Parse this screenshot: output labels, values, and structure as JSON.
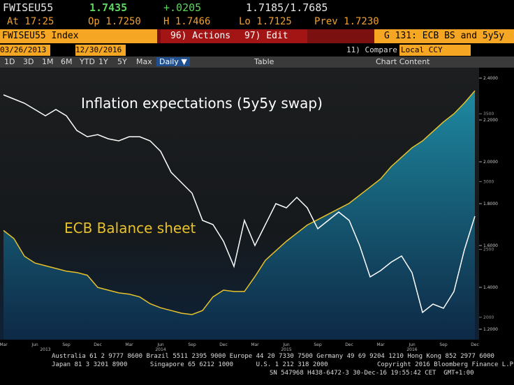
{
  "terminal": {
    "ticker": "FWISEU55",
    "last": "1.7435",
    "change": "+.0205",
    "bid_ask": "1.7185/1.7685",
    "at": "At 17:25",
    "open": "Op 1.7250",
    "high": "H 1.7466",
    "low": "Lo 1.7125",
    "prev": "Prev 1.7230",
    "security": "FWISEU55 Index",
    "actions": "96) Actions",
    "edit": "97) Edit",
    "page_title": "G 131: ECB BS and 5y5y",
    "start_date": "03/26/2013",
    "end_date": "12/30/2016",
    "compare": "11) Compare",
    "currency": "Local CCY",
    "periods": [
      "1D",
      "3D",
      "1M",
      "6M",
      "YTD",
      "1Y",
      "5Y",
      "Max"
    ],
    "frequency": "Daily ▼",
    "table": "Table",
    "chart_content": "Chart Content",
    "footer": [
      "Australia 61 2 9777 8600 Brazil 5511 2395 9000 Europe 44 20 7330 7500 Germany 49 69 9204 1210 Hong Kong 852 2977 6000",
      "Japan 81 3 3201 8900      Singapore 65 6212 1000      U.S. 1 212 318 2000             Copyright 2016 Bloomberg Finance L.P.",
      "SN 547968 H438-6472-3 30-Dec-16 19:55:42 CET  GMT+1:00"
    ]
  },
  "chart_data": {
    "type": "line",
    "annotations": [
      "Inflation expectations (5y5y swap)",
      "ECB Balance sheet"
    ],
    "categories": [
      "Mar",
      null,
      null,
      "Jun",
      null,
      null,
      "Sep",
      null,
      null,
      "Dec",
      null,
      null,
      "Mar",
      null,
      null,
      "Jun",
      null,
      null,
      "Sep",
      null,
      null,
      "Dec",
      null,
      null,
      "Mar",
      null,
      null,
      "Jun",
      null,
      null,
      "Sep",
      null,
      null,
      "Dec",
      null,
      null,
      "Mar",
      null,
      null,
      "Jun",
      null,
      null,
      "Sep",
      null,
      null,
      "Dec"
    ],
    "year_labels": [
      null,
      null,
      null,
      null,
      "2013",
      null,
      null,
      null,
      null,
      null,
      null,
      null,
      null,
      null,
      null,
      "2014",
      null,
      null,
      null,
      null,
      null,
      null,
      null,
      null,
      null,
      null,
      null,
      "2015",
      null,
      null,
      null,
      null,
      null,
      null,
      null,
      null,
      null,
      null,
      null,
      "2016",
      null,
      null,
      null,
      null,
      null,
      null
    ],
    "series": [
      {
        "color": "#ffffff",
        "values": [
          2.32,
          2.3,
          2.28,
          2.25,
          2.22,
          2.25,
          2.22,
          2.15,
          2.12,
          2.13,
          2.11,
          2.1,
          2.12,
          2.12,
          2.1,
          2.05,
          1.95,
          1.9,
          1.85,
          1.72,
          1.7,
          1.62,
          1.5,
          1.72,
          1.6,
          1.7,
          1.8,
          1.78,
          1.83,
          1.78,
          1.68,
          1.72,
          1.76,
          1.72,
          1.6,
          1.45,
          1.48,
          1.52,
          1.55,
          1.47,
          1.28,
          1.32,
          1.3,
          1.38,
          1.58,
          1.74
        ]
      },
      {
        "color": "#e8c22a",
        "fill": "#1e8fa8",
        "axis": "y2",
        "values": [
          2640,
          2580,
          2450,
          2400,
          2380,
          2360,
          2340,
          2330,
          2310,
          2220,
          2200,
          2180,
          2170,
          2150,
          2100,
          2070,
          2050,
          2030,
          2020,
          2050,
          2150,
          2200,
          2190,
          2190,
          2300,
          2420,
          2490,
          2560,
          2620,
          2680,
          2720,
          2760,
          2800,
          2840,
          2900,
          2960,
          3020,
          3110,
          3180,
          3250,
          3300,
          3370,
          3440,
          3500,
          3580,
          3670
        ]
      }
    ],
    "ylim": [
      1.15,
      2.45
    ],
    "yticks": [
      {
        "value": 1.2,
        "label": "1.2000"
      },
      {
        "value": 1.4,
        "label": "1.4000"
      },
      {
        "value": 1.6,
        "label": "1.6000"
      },
      {
        "value": 1.8,
        "label": "1.8000"
      },
      {
        "value": 2.0,
        "label": "2.0000"
      },
      {
        "value": 2.2,
        "label": "2.2000"
      },
      {
        "value": 2.4,
        "label": "2.4000"
      }
    ],
    "y2lim": [
      1835,
      3840
    ],
    "y2ticks": [
      2000,
      2500,
      3000,
      3500
    ]
  }
}
